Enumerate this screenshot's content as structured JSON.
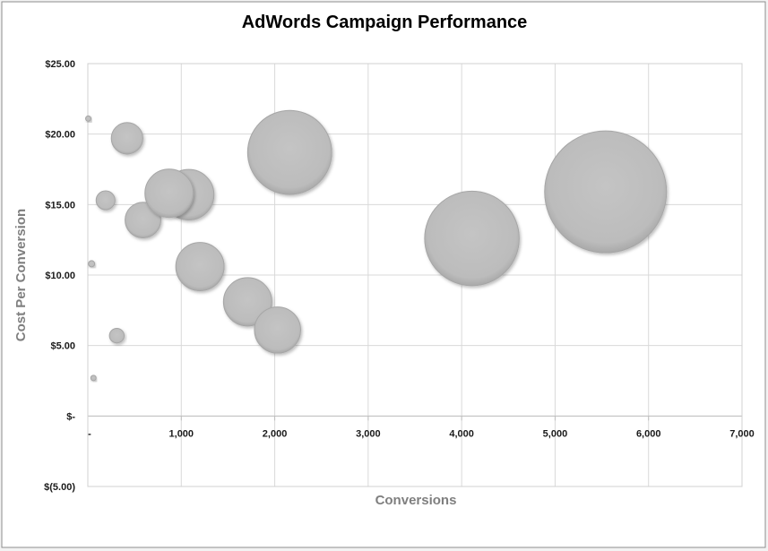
{
  "chart_data": {
    "type": "bubble",
    "title": "AdWords Campaign Performance",
    "xlabel": "Conversions",
    "ylabel": "Cost Per Conversion",
    "xlim": [
      0,
      7000
    ],
    "ylim": [
      -5,
      25
    ],
    "x_ticks": [
      {
        "value": 0,
        "label": "-"
      },
      {
        "value": 1000,
        "label": "1,000"
      },
      {
        "value": 2000,
        "label": "2,000"
      },
      {
        "value": 3000,
        "label": "3,000"
      },
      {
        "value": 4000,
        "label": "4,000"
      },
      {
        "value": 5000,
        "label": "5,000"
      },
      {
        "value": 6000,
        "label": "6,000"
      },
      {
        "value": 7000,
        "label": "7,000"
      }
    ],
    "y_ticks": [
      {
        "value": -5,
        "label": "$(5.00)"
      },
      {
        "value": 0,
        "label": "$-"
      },
      {
        "value": 5,
        "label": "$5.00"
      },
      {
        "value": 10,
        "label": "$10.00"
      },
      {
        "value": 15,
        "label": "$15.00"
      },
      {
        "value": 20,
        "label": "$20.00"
      },
      {
        "value": 25,
        "label": "$25.00"
      }
    ],
    "grid": true,
    "bubble_color": "#bfbfbf",
    "points": [
      {
        "x": 5,
        "y": 21.1,
        "size": 2
      },
      {
        "x": 40,
        "y": 10.8,
        "size": 3
      },
      {
        "x": 60,
        "y": 2.7,
        "size": 2
      },
      {
        "x": 190,
        "y": 15.3,
        "size": 9
      },
      {
        "x": 310,
        "y": 5.7,
        "size": 7
      },
      {
        "x": 420,
        "y": 19.7,
        "size": 15
      },
      {
        "x": 590,
        "y": 13.9,
        "size": 17
      },
      {
        "x": 1080,
        "y": 15.7,
        "size": 24
      },
      {
        "x": 870,
        "y": 15.8,
        "size": 23
      },
      {
        "x": 1200,
        "y": 10.6,
        "size": 23
      },
      {
        "x": 1710,
        "y": 8.1,
        "size": 23
      },
      {
        "x": 2030,
        "y": 6.1,
        "size": 22
      },
      {
        "x": 2160,
        "y": 18.7,
        "size": 40
      },
      {
        "x": 4110,
        "y": 12.6,
        "size": 45
      },
      {
        "x": 5540,
        "y": 15.9,
        "size": 58
      }
    ]
  }
}
